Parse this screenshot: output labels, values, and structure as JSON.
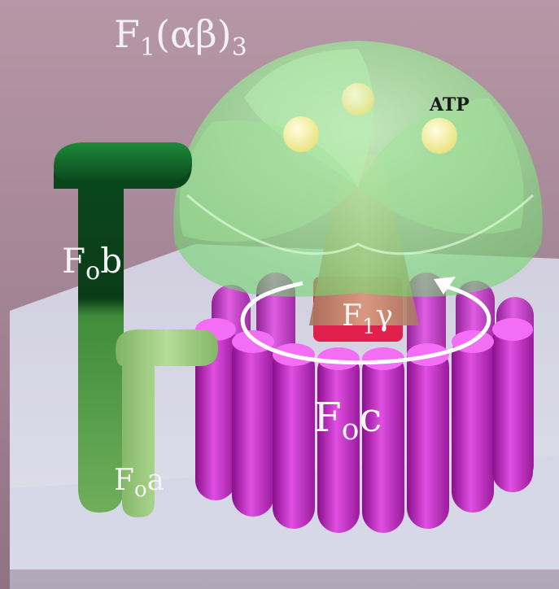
{
  "labels": {
    "f1_ab3": {
      "main": "F",
      "sub": "1",
      "rest": "(αβ)",
      "sub2": "3"
    },
    "atp": "ATP",
    "fob": {
      "main": "F",
      "sub": "o",
      "rest": "b"
    },
    "f1_gamma": {
      "main": "F",
      "sub": "1",
      "rest": "γ"
    },
    "foc": {
      "main": "F",
      "sub": "o",
      "rest": "c"
    },
    "foa": {
      "main": "F",
      "sub": "o",
      "rest": "a"
    }
  },
  "colors": {
    "background": "#a98a98",
    "membrane": "#dfe3f0",
    "c_ring": "#c21fc4",
    "stator_b_top": "#0d4d22",
    "stator_b_bottom": "#4a9a3f",
    "subunit_a": "#8bc06e",
    "f1_head": "#9ee89a",
    "gamma": "#e0214e",
    "atp_sphere": "#f5f29a",
    "arrow": "#ffffff"
  }
}
